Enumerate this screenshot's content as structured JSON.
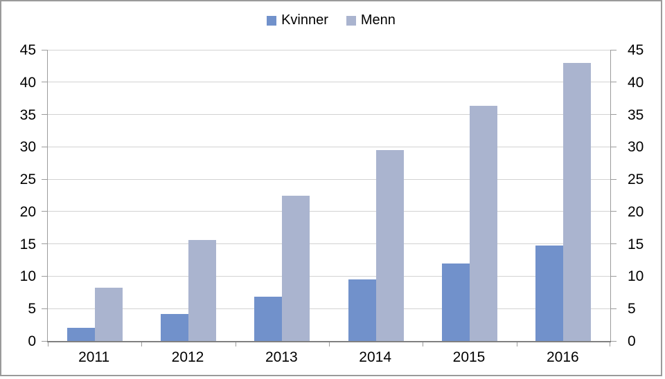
{
  "chart_data": {
    "type": "bar",
    "title": "",
    "categories": [
      "2011",
      "2012",
      "2013",
      "2014",
      "2015",
      "2016"
    ],
    "series": [
      {
        "name": "Kvinner",
        "color": "#7191CB",
        "values": [
          2.0,
          4.2,
          6.8,
          9.5,
          12.0,
          14.7
        ]
      },
      {
        "name": "Menn",
        "color": "#AAB4CF",
        "values": [
          8.2,
          15.6,
          22.5,
          29.5,
          36.3,
          43.0
        ]
      }
    ],
    "ylim": [
      0,
      45
    ],
    "yticks": [
      0,
      5,
      10,
      15,
      20,
      25,
      30,
      35,
      40,
      45
    ],
    "grid": true,
    "legend_position": "top-center",
    "y_axis_sides": [
      "left",
      "right"
    ],
    "xlabel": "",
    "ylabel": ""
  },
  "colors": {
    "gridline": "#D2D2D2",
    "axis_border": "#9B9B9B",
    "baseline": "#808080",
    "frame_border": "#9A9A9A",
    "background": "#FFFFFF",
    "text": "#000000"
  }
}
